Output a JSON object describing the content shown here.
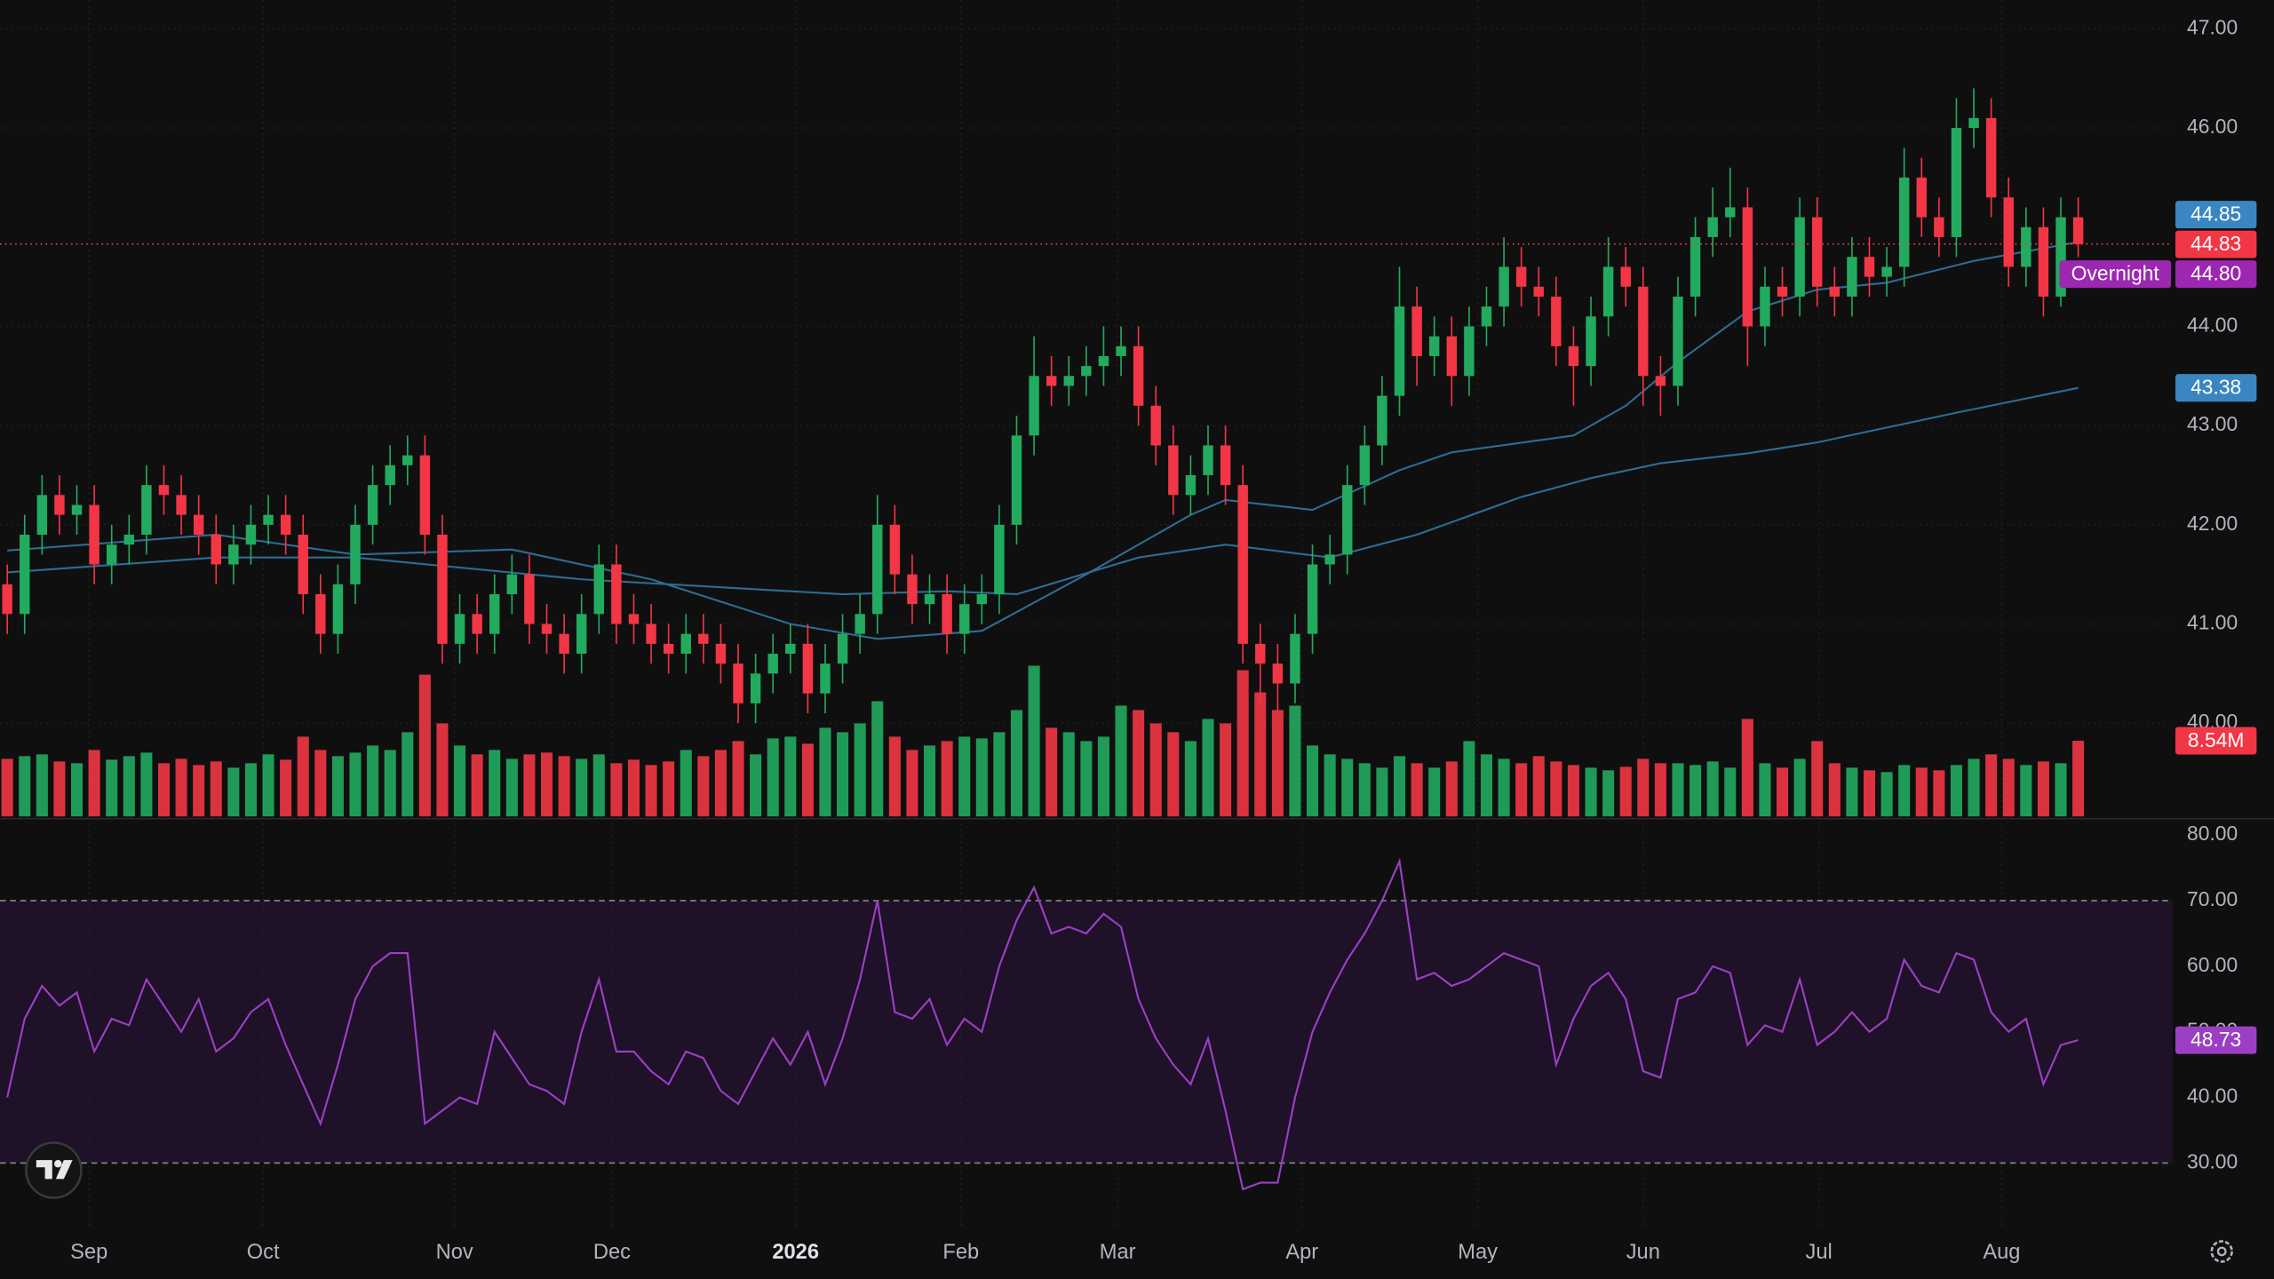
{
  "chart_data": {
    "type": "candlestick",
    "ylim": [
      39.06,
      47.29
    ],
    "yticks": [
      {
        "value": 40,
        "label": "40.00"
      },
      {
        "value": 41,
        "label": "41.00"
      },
      {
        "value": 42,
        "label": "42.00"
      },
      {
        "value": 43,
        "label": "43.00"
      },
      {
        "value": 44,
        "label": "44.00"
      },
      {
        "value": 46,
        "label": "46.00"
      },
      {
        "value": 47,
        "label": "47.00"
      }
    ],
    "grid": true,
    "xticks": [
      {
        "value": 4.7,
        "label": "Sep"
      },
      {
        "value": 14.7,
        "label": "Oct"
      },
      {
        "value": 25.7,
        "label": "Nov"
      },
      {
        "value": 34.75,
        "label": "Dec"
      },
      {
        "value": 45.3,
        "label": "2026",
        "bold": true
      },
      {
        "value": 54.8,
        "label": "Feb"
      },
      {
        "value": 63.8,
        "label": "Mar"
      },
      {
        "value": 74.4,
        "label": "Apr"
      },
      {
        "value": 84.5,
        "label": "May"
      },
      {
        "value": 94,
        "label": "Jun"
      },
      {
        "value": 104.1,
        "label": "Jul"
      },
      {
        "value": 114.6,
        "label": "Aug"
      }
    ],
    "up_color": "#22ab5f",
    "down_color": "#f23645",
    "open": [
      41.4,
      41.1,
      41.9,
      42.3,
      42.1,
      42.2,
      41.6,
      41.8,
      41.9,
      42.4,
      42.3,
      42.1,
      41.9,
      41.6,
      41.8,
      42.0,
      42.1,
      41.9,
      41.3,
      40.9,
      41.4,
      42.0,
      42.4,
      42.6,
      42.7,
      41.9,
      40.8,
      41.1,
      40.9,
      41.3,
      41.5,
      41.0,
      40.9,
      40.7,
      41.1,
      41.6,
      41.1,
      41.0,
      40.8,
      40.7,
      40.9,
      40.8,
      40.6,
      40.2,
      40.5,
      40.7,
      40.8,
      40.3,
      40.6,
      40.9,
      41.1,
      42.0,
      41.5,
      41.2,
      41.3,
      40.9,
      41.2,
      41.3,
      42.0,
      42.9,
      43.5,
      43.4,
      43.5,
      43.6,
      43.7,
      43.8,
      43.2,
      42.8,
      42.3,
      42.5,
      42.8,
      42.4,
      40.8,
      40.6,
      40.4,
      40.9,
      41.6,
      41.7,
      42.4,
      42.8,
      43.3,
      44.2,
      43.7,
      43.9,
      43.5,
      44.0,
      44.2,
      44.6,
      44.4,
      44.3,
      43.8,
      43.6,
      44.1,
      44.6,
      44.4,
      43.5,
      43.4,
      44.3,
      44.9,
      45.1,
      45.2,
      44.0,
      44.4,
      44.3,
      45.1,
      44.4,
      44.3,
      44.7,
      44.5,
      44.6,
      45.5,
      45.1,
      44.9,
      46.0,
      46.1,
      45.3,
      44.6,
      45.0,
      44.3,
      45.1
    ],
    "high": [
      41.6,
      42.1,
      42.5,
      42.5,
      42.4,
      42.4,
      42.0,
      42.1,
      42.6,
      42.6,
      42.5,
      42.3,
      42.1,
      42.0,
      42.2,
      42.3,
      42.3,
      42.1,
      41.5,
      41.6,
      42.2,
      42.6,
      42.8,
      42.9,
      42.9,
      42.1,
      41.3,
      41.3,
      41.5,
      41.7,
      41.7,
      41.2,
      41.1,
      41.3,
      41.8,
      41.8,
      41.3,
      41.2,
      41.0,
      41.1,
      41.1,
      41.0,
      40.8,
      40.7,
      40.9,
      41.0,
      41.0,
      40.8,
      41.1,
      41.3,
      42.3,
      42.2,
      41.7,
      41.5,
      41.5,
      41.4,
      41.5,
      42.2,
      43.1,
      43.9,
      43.7,
      43.7,
      43.8,
      44.0,
      44.0,
      44.0,
      43.4,
      43.0,
      42.7,
      43.0,
      43.0,
      42.6,
      41.0,
      40.8,
      41.1,
      41.8,
      41.9,
      42.6,
      43.0,
      43.5,
      44.6,
      44.4,
      44.1,
      44.1,
      44.2,
      44.4,
      44.9,
      44.8,
      44.6,
      44.5,
      44.0,
      44.3,
      44.9,
      44.8,
      44.6,
      43.7,
      44.5,
      45.1,
      45.4,
      45.6,
      45.4,
      44.6,
      44.6,
      45.3,
      45.3,
      44.6,
      44.9,
      44.9,
      44.8,
      45.8,
      45.7,
      45.3,
      46.3,
      46.4,
      46.3,
      45.5,
      45.2,
      45.2,
      45.3,
      45.3
    ],
    "low": [
      40.9,
      40.9,
      41.7,
      41.9,
      41.9,
      41.4,
      41.4,
      41.6,
      41.7,
      42.1,
      41.9,
      41.7,
      41.4,
      41.4,
      41.6,
      41.8,
      41.7,
      41.1,
      40.7,
      40.7,
      41.2,
      41.8,
      42.2,
      42.4,
      41.7,
      40.6,
      40.6,
      40.7,
      40.7,
      41.1,
      40.8,
      40.7,
      40.5,
      40.5,
      40.9,
      40.8,
      40.8,
      40.6,
      40.5,
      40.5,
      40.6,
      40.4,
      40.0,
      40.0,
      40.3,
      40.5,
      40.1,
      40.1,
      40.4,
      40.7,
      40.9,
      41.3,
      41.0,
      41.0,
      40.7,
      40.7,
      41.0,
      41.1,
      41.8,
      42.7,
      43.2,
      43.2,
      43.3,
      43.4,
      43.5,
      43.0,
      42.6,
      42.1,
      42.1,
      42.3,
      42.2,
      40.6,
      40.2,
      40.1,
      40.2,
      40.7,
      41.4,
      41.5,
      42.2,
      42.6,
      43.1,
      43.4,
      43.5,
      43.2,
      43.3,
      43.8,
      44.0,
      44.2,
      44.1,
      43.6,
      43.2,
      43.4,
      43.9,
      44.2,
      43.2,
      43.1,
      43.2,
      44.1,
      44.7,
      44.9,
      43.6,
      43.8,
      44.1,
      44.1,
      44.2,
      44.1,
      44.1,
      44.3,
      44.3,
      44.4,
      44.9,
      44.7,
      44.7,
      45.8,
      45.1,
      44.4,
      44.4,
      44.1,
      44.2,
      44.7
    ],
    "close": [
      41.1,
      41.9,
      42.3,
      42.1,
      42.2,
      41.6,
      41.8,
      41.9,
      42.4,
      42.3,
      42.1,
      41.9,
      41.6,
      41.8,
      42.0,
      42.1,
      41.9,
      41.3,
      40.9,
      41.4,
      42.0,
      42.4,
      42.6,
      42.7,
      41.9,
      40.8,
      41.1,
      40.9,
      41.3,
      41.5,
      41.0,
      40.9,
      40.7,
      41.1,
      41.6,
      41.0,
      41.0,
      40.8,
      40.7,
      40.9,
      40.8,
      40.6,
      40.2,
      40.5,
      40.7,
      40.8,
      40.3,
      40.6,
      40.9,
      41.1,
      42.0,
      41.5,
      41.2,
      41.3,
      40.9,
      41.2,
      41.3,
      42.0,
      42.9,
      43.5,
      43.4,
      43.5,
      43.6,
      43.7,
      43.8,
      43.2,
      42.8,
      42.3,
      42.5,
      42.8,
      42.4,
      40.8,
      40.6,
      40.4,
      40.9,
      41.6,
      41.7,
      42.4,
      42.8,
      43.3,
      44.2,
      43.7,
      43.9,
      43.5,
      44.0,
      44.2,
      44.6,
      44.4,
      44.3,
      43.8,
      43.6,
      44.1,
      44.6,
      44.4,
      43.5,
      43.4,
      44.3,
      44.9,
      45.1,
      45.2,
      44.0,
      44.4,
      44.3,
      45.1,
      44.4,
      44.3,
      44.7,
      44.5,
      44.6,
      45.5,
      45.1,
      44.9,
      46.0,
      46.1,
      45.3,
      44.6,
      45.0,
      44.3,
      45.1,
      44.83
    ],
    "volume": {
      "ylim": [
        0,
        18
      ],
      "values": [
        6.5,
        6.8,
        7.0,
        6.2,
        6.0,
        7.5,
        6.4,
        6.8,
        7.2,
        6.0,
        6.5,
        5.8,
        6.2,
        5.5,
        6.0,
        7.0,
        6.4,
        9.0,
        7.5,
        6.8,
        7.2,
        8.0,
        7.5,
        9.5,
        16.0,
        10.5,
        8.0,
        7.0,
        7.5,
        6.5,
        7.0,
        7.2,
        6.8,
        6.5,
        7.0,
        6.0,
        6.4,
        5.8,
        6.2,
        7.5,
        6.8,
        7.5,
        8.5,
        7.0,
        8.8,
        9.0,
        8.2,
        10.0,
        9.5,
        10.5,
        13.0,
        9.0,
        7.5,
        8.0,
        8.5,
        9.0,
        8.8,
        9.5,
        12.0,
        17.0,
        10.0,
        9.5,
        8.5,
        9.0,
        12.5,
        12.0,
        10.5,
        9.5,
        8.5,
        11.0,
        10.5,
        16.5,
        14.0,
        12.0,
        12.5,
        8.0,
        7.0,
        6.5,
        6.0,
        5.5,
        6.8,
        6.0,
        5.5,
        6.2,
        8.5,
        7.0,
        6.5,
        6.0,
        6.8,
        6.2,
        5.8,
        5.5,
        5.2,
        5.6,
        6.5,
        6.0,
        6.0,
        5.8,
        6.2,
        5.5,
        11.0,
        6.0,
        5.5,
        6.5,
        8.5,
        6.0,
        5.5,
        5.2,
        5.0,
        5.8,
        5.5,
        5.2,
        5.8,
        6.5,
        7.0,
        6.5,
        5.8,
        6.2,
        6.0,
        8.54
      ],
      "value_labels": [
        null,
        null,
        null,
        null,
        null,
        null,
        null,
        null,
        null,
        null,
        null,
        null,
        null,
        null,
        null,
        null,
        null,
        null,
        null,
        null,
        null,
        null,
        null,
        null,
        null,
        null,
        null,
        null,
        null,
        null,
        null,
        null,
        null,
        null,
        null,
        null,
        null,
        null,
        null,
        null,
        null,
        null,
        null,
        null,
        null,
        null,
        null,
        null,
        null,
        null,
        null,
        null,
        null,
        null,
        null,
        null,
        null,
        null,
        null,
        null,
        null,
        null,
        null,
        null,
        null,
        null,
        null,
        null,
        null,
        null,
        null,
        null,
        null,
        null,
        null,
        null,
        null,
        null,
        null,
        null,
        null,
        null,
        null,
        null,
        null,
        null,
        null,
        null,
        null,
        null,
        null,
        null,
        null,
        null,
        null,
        null,
        null,
        null,
        null,
        null,
        null,
        null,
        null,
        null,
        null,
        null,
        null,
        null,
        null,
        null,
        null,
        null,
        null,
        null,
        null,
        null,
        null,
        null,
        null,
        "8.54M"
      ]
    },
    "ma": [
      {
        "color": "#2d6c93",
        "label_color": "#3a86c0",
        "x": [
          0,
          12,
          20,
          29,
          37,
          45,
          50,
          56,
          62,
          68,
          70,
          75,
          80,
          83,
          90,
          93,
          96,
          100,
          104,
          108,
          113,
          119
        ],
        "values": [
          41.74,
          41.9,
          41.7,
          41.75,
          41.45,
          41.0,
          40.85,
          40.93,
          41.5,
          42.1,
          42.25,
          42.15,
          42.55,
          42.73,
          42.9,
          43.2,
          43.64,
          44.15,
          44.37,
          44.44,
          44.66,
          44.85
        ]
      },
      {
        "color": "#2d6c93",
        "label_color": "#3a86c0",
        "x": [
          0,
          12,
          20,
          33,
          41,
          48,
          54,
          58,
          65,
          70,
          76,
          81,
          87,
          91,
          95,
          100,
          104,
          108,
          112,
          119
        ],
        "values": [
          41.52,
          41.67,
          41.67,
          41.45,
          41.37,
          41.3,
          41.33,
          41.3,
          41.67,
          41.8,
          41.67,
          41.9,
          42.28,
          42.47,
          42.62,
          42.72,
          42.83,
          42.98,
          43.13,
          43.38
        ]
      }
    ],
    "overnight": {
      "name": "Overnight",
      "value": 44.8,
      "label": "44.80",
      "color": "#9c27b0"
    },
    "rsi": {
      "color": "#9c3fc4",
      "band_color": "#1e1128",
      "ylim": [
        20.5,
        82.4
      ],
      "band": [
        30,
        70
      ],
      "yticks": [
        {
          "value": 30,
          "label": "30.00"
        },
        {
          "value": 40,
          "label": "40.00"
        },
        {
          "value": 50,
          "label": "50.00"
        },
        {
          "value": 60,
          "label": "60.00"
        },
        {
          "value": 70,
          "label": "70.00"
        },
        {
          "value": 80,
          "label": "80.00"
        }
      ],
      "values": [
        40,
        52,
        57,
        54,
        56,
        47,
        52,
        51,
        58,
        54,
        50,
        55,
        47,
        49,
        53,
        55,
        48,
        42,
        36,
        45,
        55,
        60,
        62,
        62,
        36,
        38,
        40,
        39,
        50,
        46,
        42,
        41,
        39,
        50,
        58,
        47,
        47,
        44,
        42,
        47,
        46,
        41,
        39,
        44,
        49,
        45,
        50,
        42,
        49,
        58,
        70,
        53,
        52,
        55,
        48,
        52,
        50,
        60,
        67,
        72,
        65,
        66,
        65,
        68,
        66,
        55,
        49,
        45,
        42,
        49,
        38,
        26,
        27,
        27,
        40,
        50,
        56,
        61,
        65,
        70,
        76,
        58,
        59,
        57,
        58,
        60,
        62,
        61,
        60,
        45,
        52,
        57,
        59,
        55,
        44,
        43,
        55,
        56,
        60,
        59,
        48,
        51,
        50,
        58,
        48,
        50,
        53,
        50,
        52,
        61,
        57,
        56,
        62,
        61,
        53,
        50,
        52,
        42,
        48,
        48.73
      ]
    }
  }
}
